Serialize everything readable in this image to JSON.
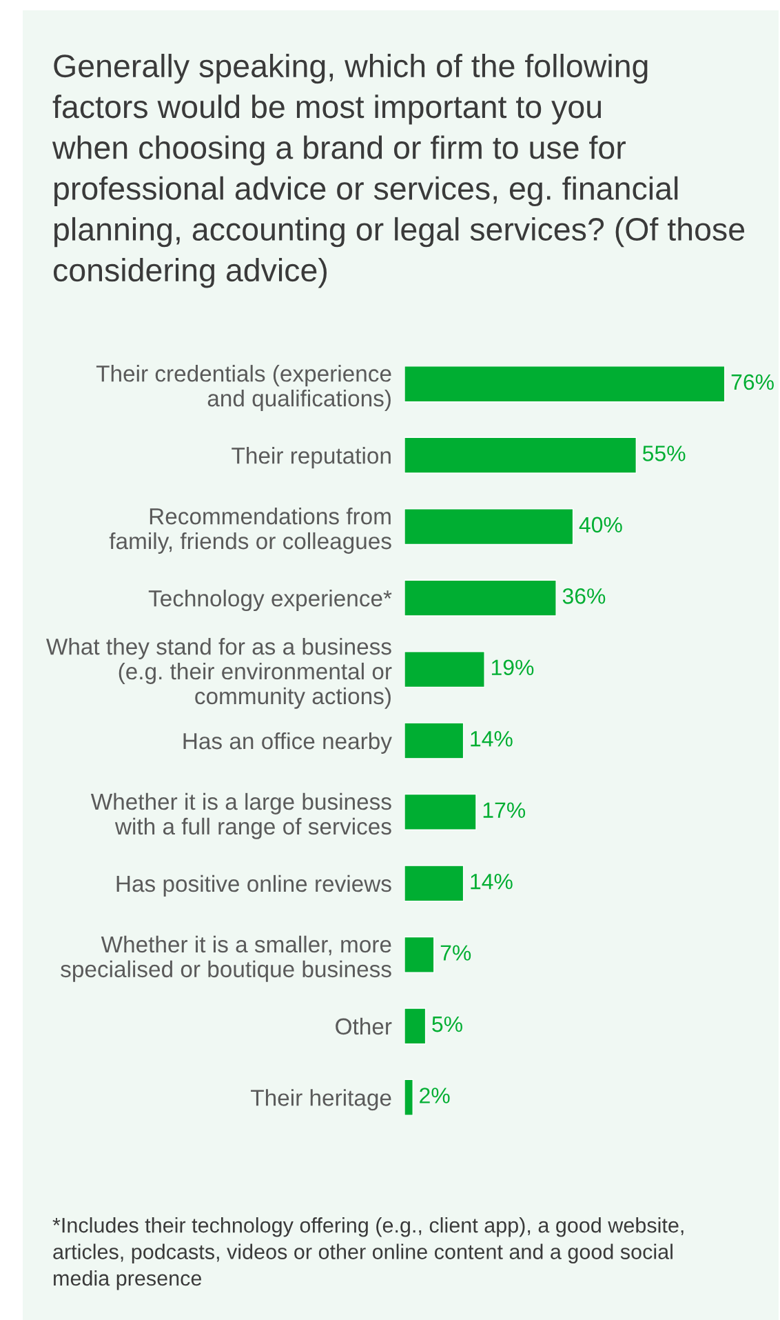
{
  "chart_data": {
    "type": "bar",
    "orientation": "horizontal",
    "title": "Generally speaking, which of the following\nfactors would be most important to you\nwhen choosing a brand or firm to use for\nprofessional advice or services, eg. financial\nplanning, accounting or legal services? (Of those\nconsidering advice)",
    "categories": [
      "Their credentials (experience\nand qualifications)",
      "Their reputation",
      "Recommendations from\nfamily, friends or colleagues",
      "Technology experience*",
      "What they stand for as a business\n(e.g. their environmental or\ncommunity actions)",
      "Has an office nearby",
      "Whether it is a large business\nwith a full range of services",
      "Has positive online reviews",
      "Whether it is a smaller, more\nspecialised or boutique business",
      "Other",
      "Their heritage"
    ],
    "values": [
      76,
      55,
      40,
      36,
      19,
      14,
      17,
      14,
      7,
      5,
      2
    ],
    "value_labels": [
      "76%",
      "55%",
      "40%",
      "36%",
      "19%",
      "14%",
      "17%",
      "14%",
      "7%",
      "5%",
      "2%"
    ],
    "color": "#00ae32",
    "tick_labels": "y",
    "annotations": [
      "*Includes their technology offering (e.g., client app), a good website,\narticles, podcasts, videos or other online content and a good social\nmedia presence"
    ]
  }
}
